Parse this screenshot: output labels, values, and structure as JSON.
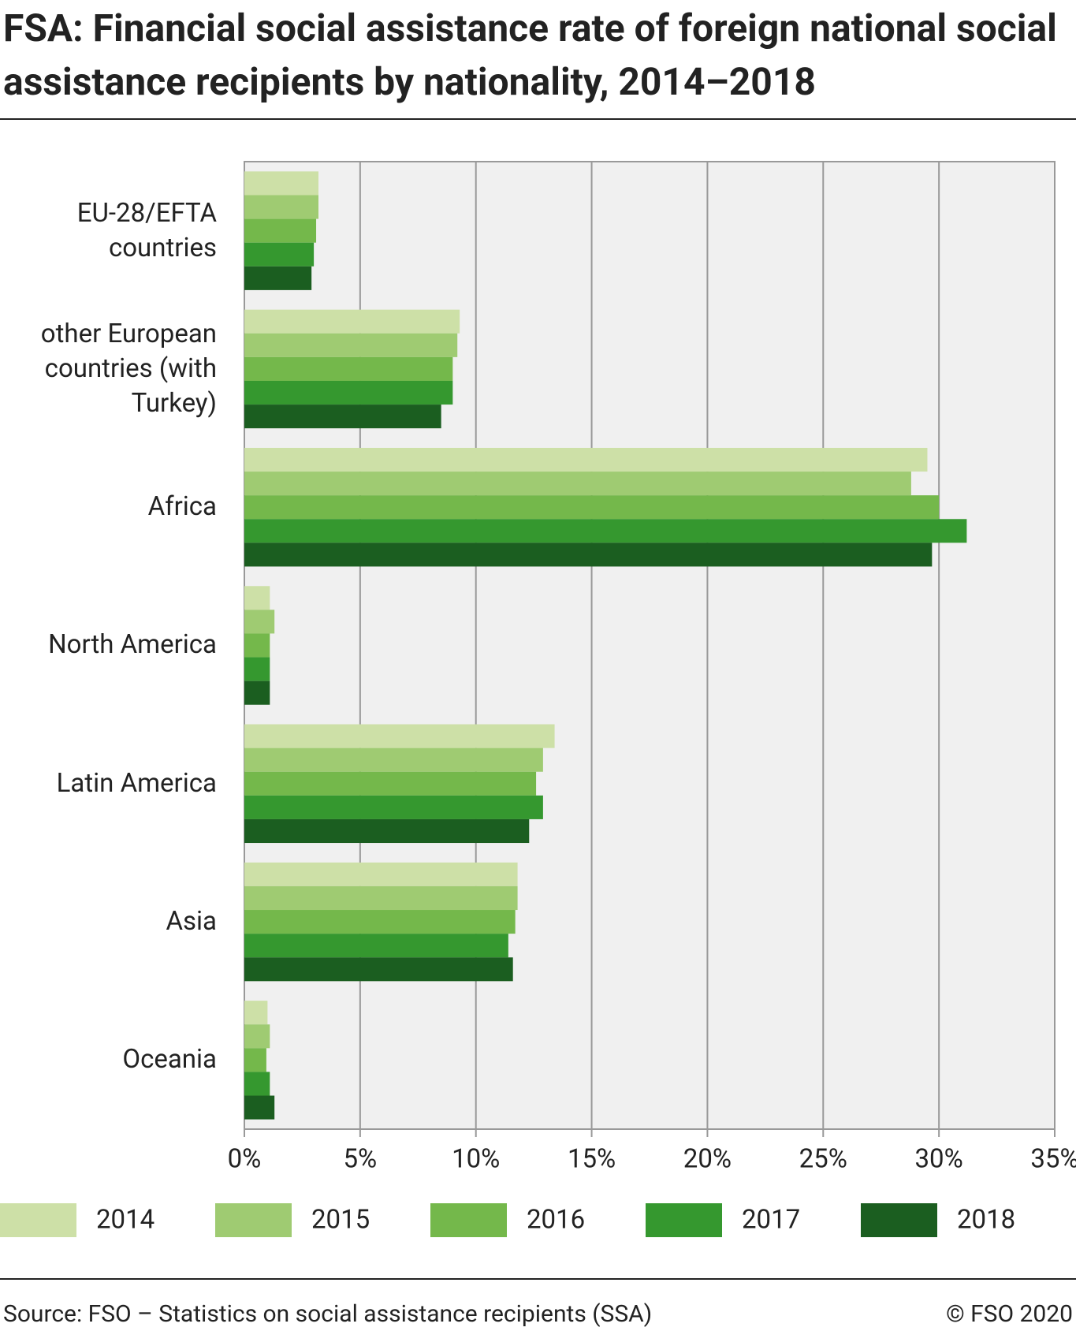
{
  "chart_data": {
    "type": "bar",
    "orientation": "horizontal",
    "title": "FSA: Financial social assistance rate of foreign national social assistance recipients by nationality, 2014–2018",
    "categories": [
      "EU-28/EFTA countries",
      "other European countries (with Turkey)",
      "Africa",
      "North America",
      "Latin America",
      "Asia",
      "Oceania"
    ],
    "series": [
      {
        "name": "2014",
        "color": "#cde0a7",
        "values": [
          3.2,
          9.3,
          29.5,
          1.1,
          13.4,
          11.8,
          1.0
        ]
      },
      {
        "name": "2015",
        "color": "#9fcb72",
        "values": [
          3.2,
          9.2,
          28.8,
          1.3,
          12.9,
          11.8,
          1.1
        ]
      },
      {
        "name": "2016",
        "color": "#74b84b",
        "values": [
          3.1,
          9.0,
          30.0,
          1.1,
          12.6,
          11.7,
          0.95
        ]
      },
      {
        "name": "2017",
        "color": "#35982f",
        "values": [
          3.0,
          9.0,
          31.2,
          1.1,
          12.9,
          11.4,
          1.1
        ]
      },
      {
        "name": "2018",
        "color": "#1b5e20",
        "values": [
          2.9,
          8.5,
          29.7,
          1.1,
          12.3,
          11.6,
          1.3
        ]
      }
    ],
    "xlim": [
      0,
      35
    ],
    "xticks": [
      {
        "value": 0,
        "label": "0%"
      },
      {
        "value": 5,
        "label": "5%"
      },
      {
        "value": 10,
        "label": "10%"
      },
      {
        "value": 15,
        "label": "15%"
      },
      {
        "value": 20,
        "label": "20%"
      },
      {
        "value": 25,
        "label": "25%"
      },
      {
        "value": 30,
        "label": "30%"
      },
      {
        "value": 35,
        "label": "35%"
      }
    ],
    "grid": true,
    "source": "Source: FSO – Statistics on social assistance recipients (SSA)",
    "copyright": "© FSO 2020"
  }
}
